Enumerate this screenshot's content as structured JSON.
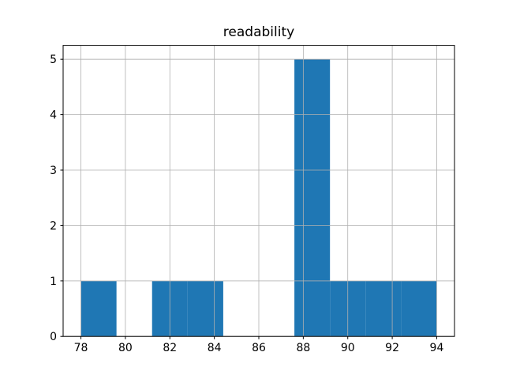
{
  "title": "readability",
  "chart_data": {
    "type": "bar",
    "subtype": "histogram",
    "title": "readability",
    "xlabel": "",
    "ylabel": "",
    "bin_edges": [
      78.0,
      79.6,
      81.2,
      82.8,
      84.4,
      86.0,
      87.6,
      89.2,
      90.8,
      92.4,
      94.0
    ],
    "counts": [
      1,
      0,
      1,
      1,
      0,
      0,
      5,
      1,
      1,
      1
    ],
    "xticks": [
      78,
      80,
      82,
      84,
      86,
      88,
      90,
      92,
      94
    ],
    "yticks": [
      0,
      1,
      2,
      3,
      4,
      5
    ],
    "xlim": [
      77.2,
      94.8
    ],
    "ylim": [
      0,
      5.25
    ],
    "grid": true,
    "legend": false,
    "bar_color": "#1f77b4",
    "grid_color": "#b0b0b0",
    "spine_color": "#000000",
    "tick_color": "#000000",
    "background_color": "#ffffff"
  }
}
